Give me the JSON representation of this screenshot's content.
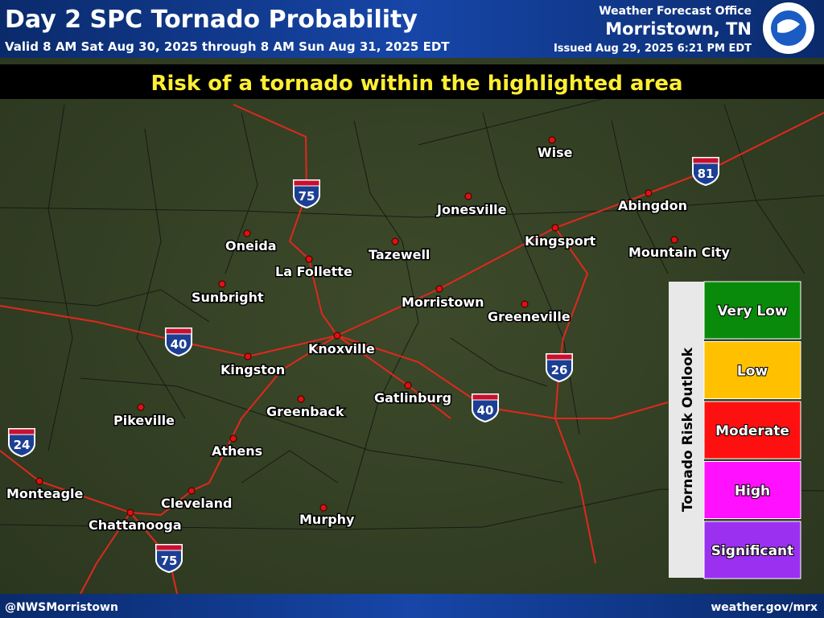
{
  "header": {
    "title": "Day 2 SPC Tornado Probability",
    "valid": "Valid 8 AM Sat Aug 30, 2025 through 8 AM Sun Aug 31, 2025 EDT",
    "office": "Weather Forecast Office",
    "city": "Morristown, TN",
    "issued": "Issued Aug 29, 2025 6:21 PM EDT"
  },
  "banner": "Risk of a tornado within the highlighted area",
  "cities": [
    "Wise",
    "Jonesville",
    "Abingdon",
    "Kingsport",
    "Mountain City",
    "Oneida",
    "Tazewell",
    "La Follette",
    "Morristown",
    "Greeneville",
    "Sunbright",
    "Knoxville",
    "Kingston",
    "Gatlinburg",
    "Greenback",
    "Pikeville",
    "Athens",
    "Monteagle",
    "Cleveland",
    "Chattanooga",
    "Murphy"
  ],
  "interstates": [
    "75",
    "81",
    "40",
    "26",
    "40",
    "24",
    "75"
  ],
  "legend": {
    "title": "Tornado Risk Outlook",
    "levels": [
      "Very Low",
      "Low",
      "Moderate",
      "High",
      "Significant"
    ]
  },
  "footer": {
    "handle": "@NWSMorristown",
    "url": "weather.gov/mrx"
  }
}
